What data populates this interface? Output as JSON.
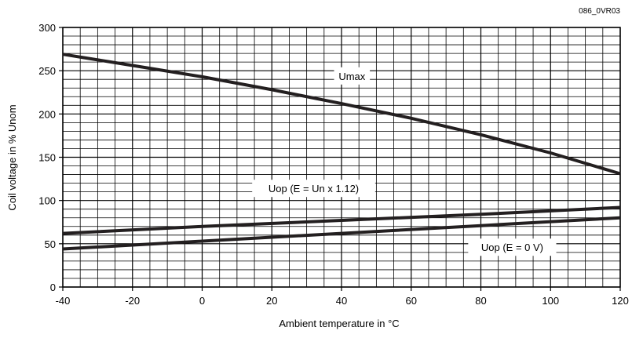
{
  "figure_ref": "086_0VR03",
  "chart_data": {
    "type": "line",
    "xlabel": "Ambient temperature in °C",
    "ylabel": "Coil voltage in % Unom",
    "xlim": [
      -40,
      120
    ],
    "ylim": [
      0,
      300
    ],
    "x_ticks": [
      -40,
      -20,
      0,
      20,
      40,
      60,
      80,
      100,
      120
    ],
    "y_ticks": [
      0,
      50,
      100,
      150,
      200,
      250,
      300
    ],
    "x_minor_step": 5,
    "y_minor_step": 10,
    "grid": true,
    "line_color": "#231f20",
    "series": [
      {
        "name": "Umax",
        "x": [
          -40,
          -20,
          0,
          20,
          40,
          60,
          80,
          100,
          120
        ],
        "y": [
          269,
          256,
          243,
          228,
          212,
          195,
          176,
          155,
          131
        ]
      },
      {
        "name": "Uop (E = Un x 1.12)",
        "x": [
          -40,
          0,
          40,
          80,
          120
        ],
        "y": [
          62,
          70,
          77,
          84,
          92
        ]
      },
      {
        "name": "Uop (E = 0 V)",
        "x": [
          -40,
          0,
          40,
          80,
          120
        ],
        "y": [
          44,
          53,
          62,
          71,
          80
        ]
      }
    ],
    "annotations": [
      {
        "series": 0,
        "text": "Umax",
        "x": 43,
        "y": 244
      },
      {
        "series": 1,
        "text": "Uop (E = Un x 1.12)",
        "x": 32,
        "y": 114
      },
      {
        "series": 2,
        "text": "Uop (E = 0 V)",
        "x": 89,
        "y": 46
      }
    ]
  }
}
